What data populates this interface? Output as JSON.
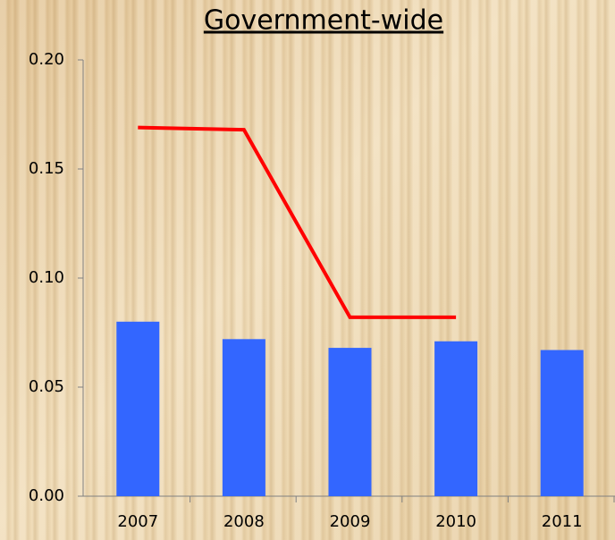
{
  "chart_data": {
    "type": "combo",
    "title": "Government-wide",
    "categories": [
      "2007",
      "2008",
      "2009",
      "2010",
      "2011"
    ],
    "series": [
      {
        "type": "bar",
        "color": "#3366ff",
        "values": [
          0.08,
          0.072,
          0.068,
          0.071,
          0.067
        ]
      },
      {
        "type": "line",
        "color": "#ff0000",
        "values": [
          0.169,
          0.168,
          0.082,
          0.082,
          null
        ]
      }
    ],
    "ylim": [
      0,
      0.2
    ],
    "yticks": [
      {
        "value": 0,
        "label": "0.00"
      },
      0.05,
      {
        "value": 0.1,
        "label": "0.10"
      },
      0.15,
      {
        "value": 0.2,
        "label": "0.20"
      }
    ]
  }
}
